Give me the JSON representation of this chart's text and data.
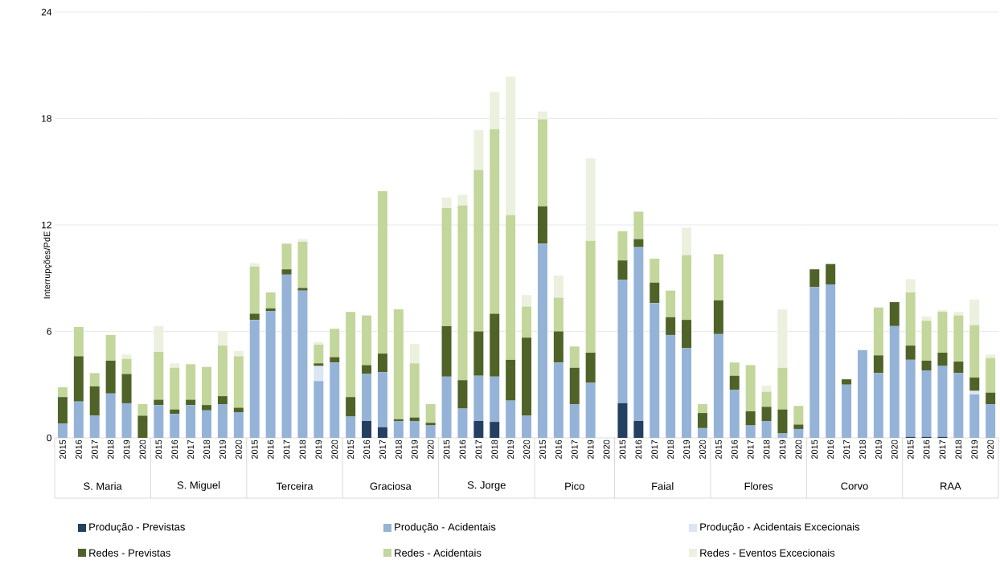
{
  "chart_data": [
    {
      "type": "bar",
      "stacked": true,
      "xlabel": "S. Maria",
      "ylabel": "Interrupções/PdE",
      "categories": [
        "2015",
        "2016",
        "2017",
        "2018",
        "2019",
        "2020"
      ],
      "ylim": [
        0,
        24
      ],
      "yticks": [
        0,
        6,
        12,
        18,
        24
      ],
      "grid": "y",
      "legend": "bottom",
      "series": [
        {
          "name": "Produção - Previstas",
          "color": "#243f60",
          "values": [
            0,
            0,
            0,
            0,
            0,
            0
          ]
        },
        {
          "name": "Produção - Acidentais",
          "color": "#95b3d7",
          "values": [
            0.8,
            2.05,
            1.25,
            2.5,
            1.95,
            0
          ]
        },
        {
          "name": "Produção - Acidentais Excecionais",
          "color": "#dce6f2",
          "values": [
            0,
            0,
            0,
            0,
            0,
            0
          ]
        },
        {
          "name": "Redes - Previstas",
          "color": "#4f6228",
          "values": [
            1.5,
            2.55,
            1.65,
            1.85,
            1.65,
            1.25
          ]
        },
        {
          "name": "Redes - Acidentais",
          "color": "#c3d69b",
          "values": [
            0.55,
            1.65,
            0.75,
            1.45,
            0.85,
            0.65
          ]
        },
        {
          "name": "Redes - Eventos Excecionais",
          "color": "#ebf1de",
          "values": [
            0,
            0,
            0,
            0,
            0.25,
            0
          ]
        }
      ]
    },
    {
      "type": "bar",
      "stacked": true,
      "xlabel": "S. Miguel",
      "categories": [
        "2015",
        "2016",
        "2017",
        "2018",
        "2019",
        "2020"
      ],
      "ylim": [
        0,
        24
      ],
      "yticks": [
        0,
        6,
        12,
        18,
        24
      ],
      "grid": "y",
      "tick_labels": "x",
      "series": [
        {
          "color": "#243f60",
          "values": [
            0,
            0,
            0,
            0,
            0,
            0
          ]
        },
        {
          "color": "#95b3d7",
          "values": [
            1.85,
            1.35,
            1.85,
            1.55,
            1.9,
            1.45
          ]
        },
        {
          "color": "#dce6f2",
          "values": [
            0,
            0,
            0,
            0,
            0,
            0
          ]
        },
        {
          "color": "#4f6228",
          "values": [
            0.3,
            0.25,
            0.3,
            0.3,
            0.45,
            0.25
          ]
        },
        {
          "color": "#c3d69b",
          "values": [
            2.7,
            2.35,
            2.0,
            2.15,
            2.85,
            2.9
          ]
        },
        {
          "color": "#ebf1de",
          "values": [
            1.45,
            0.25,
            0,
            0,
            0.8,
            0.3
          ]
        }
      ]
    },
    {
      "type": "bar",
      "stacked": true,
      "xlabel": "Terceira",
      "categories": [
        "2015",
        "2016",
        "2017",
        "2018",
        "2019",
        "2020"
      ],
      "ylim": [
        0,
        24
      ],
      "yticks": [
        0,
        6,
        12,
        18,
        24
      ],
      "grid": "y",
      "tick_labels": "x",
      "series": [
        {
          "color": "#243f60",
          "values": [
            0,
            0,
            0,
            0,
            0,
            0
          ]
        },
        {
          "color": "#95b3d7",
          "values": [
            6.65,
            7.15,
            9.2,
            8.3,
            3.2,
            4.25
          ]
        },
        {
          "color": "#dce6f2",
          "values": [
            0,
            0,
            0,
            0,
            0.85,
            0
          ]
        },
        {
          "color": "#4f6228",
          "values": [
            0.35,
            0.15,
            0.3,
            0.15,
            0.15,
            0.3
          ]
        },
        {
          "color": "#c3d69b",
          "values": [
            2.65,
            0.9,
            1.45,
            2.6,
            1.05,
            1.6
          ]
        },
        {
          "color": "#ebf1de",
          "values": [
            0.2,
            0,
            0,
            0.15,
            0.15,
            0
          ]
        }
      ]
    },
    {
      "type": "bar",
      "stacked": true,
      "xlabel": "Graciosa",
      "categories": [
        "2015",
        "2016",
        "2017",
        "2018",
        "2019",
        "2020"
      ],
      "ylim": [
        0,
        24
      ],
      "yticks": [
        0,
        6,
        12,
        18,
        24
      ],
      "grid": "y",
      "tick_labels": "x",
      "series": [
        {
          "color": "#243f60",
          "values": [
            0,
            0.95,
            0.6,
            0,
            0,
            0
          ]
        },
        {
          "color": "#95b3d7",
          "values": [
            1.2,
            2.65,
            3.1,
            0.95,
            0.95,
            0.7
          ]
        },
        {
          "color": "#dce6f2",
          "values": [
            0,
            0,
            0,
            0,
            0,
            0
          ]
        },
        {
          "color": "#4f6228",
          "values": [
            1.1,
            0.5,
            1.05,
            0.1,
            0.2,
            0.15
          ]
        },
        {
          "color": "#c3d69b",
          "values": [
            4.8,
            2.8,
            9.15,
            6.2,
            3.05,
            1.05
          ]
        },
        {
          "color": "#ebf1de",
          "values": [
            0,
            0,
            0,
            0,
            1.1,
            0
          ]
        }
      ]
    },
    {
      "type": "bar",
      "stacked": true,
      "xlabel": "S. Jorge",
      "categories": [
        "2015",
        "2016",
        "2017",
        "2018",
        "2019",
        "2020"
      ],
      "ylim": [
        0,
        24
      ],
      "yticks": [
        0,
        6,
        12,
        18,
        24
      ],
      "grid": "y",
      "tick_labels": "x",
      "series": [
        {
          "color": "#243f60",
          "values": [
            0,
            0,
            0.95,
            0.9,
            0,
            0
          ]
        },
        {
          "color": "#95b3d7",
          "values": [
            3.45,
            1.65,
            2.55,
            2.55,
            2.1,
            1.25
          ]
        },
        {
          "color": "#dce6f2",
          "values": [
            0,
            0,
            0,
            0,
            0,
            0
          ]
        },
        {
          "color": "#4f6228",
          "values": [
            2.85,
            1.6,
            2.5,
            3.55,
            2.3,
            4.4
          ]
        },
        {
          "color": "#c3d69b",
          "values": [
            6.65,
            9.85,
            9.1,
            10.4,
            8.15,
            1.75
          ]
        },
        {
          "color": "#ebf1de",
          "values": [
            0.6,
            0.6,
            2.25,
            2.1,
            7.8,
            0.65
          ]
        }
      ]
    },
    {
      "type": "bar",
      "stacked": true,
      "xlabel": "Pico",
      "categories": [
        "2015",
        "2016",
        "2017",
        "2019",
        "2020"
      ],
      "ylim": [
        0,
        24
      ],
      "yticks": [
        0,
        6,
        12,
        18,
        24
      ],
      "grid": "y",
      "tick_labels": "x",
      "series": [
        {
          "color": "#243f60",
          "values": [
            0,
            0,
            0,
            0,
            0
          ]
        },
        {
          "color": "#95b3d7",
          "values": [
            10.95,
            4.25,
            1.9,
            3.1,
            0
          ]
        },
        {
          "color": "#dce6f2",
          "values": [
            0,
            0,
            0,
            0,
            0
          ]
        },
        {
          "color": "#4f6228",
          "values": [
            2.1,
            1.75,
            2.05,
            1.7,
            0
          ]
        },
        {
          "color": "#c3d69b",
          "values": [
            4.9,
            1.9,
            1.2,
            6.3,
            0
          ]
        },
        {
          "color": "#ebf1de",
          "values": [
            0.45,
            1.25,
            0,
            4.65,
            0
          ]
        }
      ]
    },
    {
      "type": "bar",
      "stacked": true,
      "xlabel": "Faial",
      "categories": [
        "2015",
        "2016",
        "2017",
        "2018",
        "2019",
        "2020"
      ],
      "ylim": [
        0,
        24
      ],
      "yticks": [
        0,
        6,
        12,
        18,
        24
      ],
      "grid": "y",
      "tick_labels": "x",
      "series": [
        {
          "color": "#243f60",
          "values": [
            1.95,
            0.95,
            0,
            0,
            0,
            0
          ]
        },
        {
          "color": "#95b3d7",
          "values": [
            6.95,
            9.8,
            7.6,
            5.8,
            5.05,
            0.55
          ]
        },
        {
          "color": "#dce6f2",
          "values": [
            0,
            0,
            0,
            0,
            0,
            0
          ]
        },
        {
          "color": "#4f6228",
          "values": [
            1.1,
            0.45,
            1.15,
            1.0,
            1.6,
            0.85
          ]
        },
        {
          "color": "#c3d69b",
          "values": [
            1.65,
            1.55,
            1.35,
            1.5,
            3.65,
            0.5
          ]
        },
        {
          "color": "#ebf1de",
          "values": [
            0,
            0,
            0,
            0,
            1.55,
            0
          ]
        }
      ]
    },
    {
      "type": "bar",
      "stacked": true,
      "xlabel": "Flores",
      "categories": [
        "2015",
        "2016",
        "2017",
        "2018",
        "2019",
        "2020"
      ],
      "ylim": [
        0,
        24
      ],
      "yticks": [
        0,
        6,
        12,
        18,
        24
      ],
      "grid": "y",
      "tick_labels": "x",
      "series": [
        {
          "color": "#243f60",
          "values": [
            0,
            0,
            0,
            0,
            0,
            0
          ]
        },
        {
          "color": "#95b3d7",
          "values": [
            5.85,
            2.7,
            0.7,
            0.95,
            0.25,
            0.5
          ]
        },
        {
          "color": "#dce6f2",
          "values": [
            0,
            0,
            0,
            0,
            0,
            0
          ]
        },
        {
          "color": "#4f6228",
          "values": [
            1.9,
            0.8,
            0.8,
            0.8,
            1.35,
            0.25
          ]
        },
        {
          "color": "#c3d69b",
          "values": [
            2.6,
            0.75,
            2.6,
            0.85,
            2.35,
            1.05
          ]
        },
        {
          "color": "#ebf1de",
          "values": [
            0,
            0,
            0,
            0.35,
            3.3,
            0
          ]
        }
      ]
    },
    {
      "type": "bar",
      "stacked": true,
      "xlabel": "Corvo",
      "categories": [
        "2015",
        "2016",
        "2017",
        "2018",
        "2019",
        "2020"
      ],
      "ylim": [
        0,
        24
      ],
      "yticks": [
        0,
        6,
        12,
        18,
        24
      ],
      "grid": "y",
      "tick_labels": "x",
      "series": [
        {
          "color": "#243f60",
          "values": [
            0,
            0,
            0,
            0,
            0,
            0
          ]
        },
        {
          "color": "#95b3d7",
          "values": [
            8.5,
            8.65,
            3.0,
            4.95,
            3.65,
            6.3
          ]
        },
        {
          "color": "#dce6f2",
          "values": [
            0,
            0,
            0,
            0,
            0,
            0
          ]
        },
        {
          "color": "#4f6228",
          "values": [
            1.0,
            1.15,
            0.3,
            0,
            1.0,
            1.35
          ]
        },
        {
          "color": "#c3d69b",
          "values": [
            0,
            0,
            0,
            0,
            2.7,
            0
          ]
        },
        {
          "color": "#ebf1de",
          "values": [
            0,
            0,
            0,
            0,
            0,
            0
          ]
        }
      ]
    },
    {
      "type": "bar",
      "stacked": true,
      "xlabel": "RAA",
      "categories": [
        "2015",
        "2016",
        "2017",
        "2018",
        "2019",
        "2020"
      ],
      "ylim": [
        0,
        24
      ],
      "yticks": [
        0,
        6,
        12,
        18,
        24
      ],
      "grid": "y",
      "tick_labels": "x",
      "series": [
        {
          "color": "#243f60",
          "values": [
            0.05,
            0.05,
            0.05,
            0,
            0,
            0
          ]
        },
        {
          "color": "#95b3d7",
          "values": [
            4.35,
            3.75,
            4.0,
            3.65,
            2.45,
            1.9
          ]
        },
        {
          "color": "#dce6f2",
          "values": [
            0,
            0,
            0,
            0,
            0.2,
            0
          ]
        },
        {
          "color": "#4f6228",
          "values": [
            0.8,
            0.55,
            0.75,
            0.65,
            0.75,
            0.65
          ]
        },
        {
          "color": "#c3d69b",
          "values": [
            3.0,
            2.25,
            2.3,
            2.6,
            2.95,
            1.95
          ]
        },
        {
          "color": "#ebf1de",
          "values": [
            0.75,
            0.25,
            0.1,
            0.2,
            1.45,
            0.2
          ]
        }
      ]
    }
  ]
}
